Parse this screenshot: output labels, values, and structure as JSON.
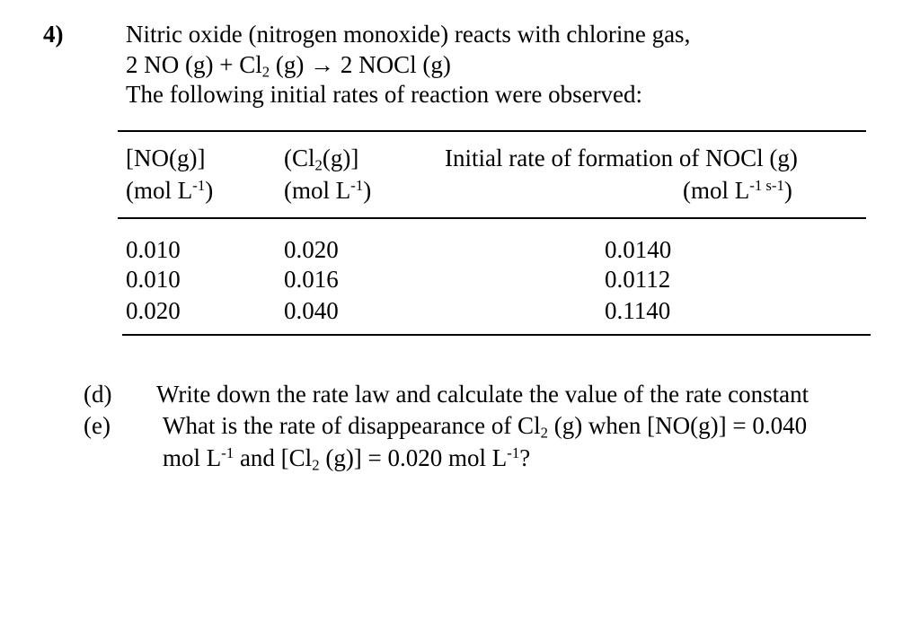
{
  "question": {
    "number": "4)",
    "intro": "Nitric oxide (nitrogen monoxide) reacts with chlorine gas,",
    "equation": {
      "lhs_prefix": "2 NO (g) + Cl",
      "lhs_sub": "2",
      "arrow_part": " (g) → 2 NOCl (g)"
    },
    "lead_in": "The following initial rates of reaction were observed:"
  },
  "table": {
    "headers": [
      {
        "line1_a": "[NO(g)]",
        "line1_sub": "",
        "line1_b": "",
        "line2_a": "(mol L",
        "line2_sup": "-1",
        "line2_b": ")"
      },
      {
        "line1_a": "(Cl",
        "line1_sub": "2",
        "line1_b": "(g)]",
        "line2_a": "(mol L",
        "line2_sup": "-1",
        "line2_b": ")"
      },
      {
        "line1_a": "Initial rate of formation of NOCl (g)",
        "line1_sub": "",
        "line1_b": "",
        "line2_a": "(mol L",
        "line2_sup": "-1 s-1",
        "line2_b": ")"
      }
    ],
    "rows": [
      [
        "0.010",
        "0.020",
        "0.0140"
      ],
      [
        "0.010",
        "0.016",
        "0.0112"
      ],
      [
        "0.020",
        "0.040",
        "0.1140"
      ]
    ]
  },
  "parts": [
    {
      "label": "(d)",
      "text": "Write down the rate law and calculate the value of the rate constant"
    },
    {
      "label": "(e)",
      "line1_a": "What is the rate of disappearance of Cl",
      "line1_sub": "2",
      "line1_b": " (g) when [NO(g)] = 0.040",
      "line2_a": "mol L",
      "line2_sup": "-1",
      "line2_b": " and [Cl",
      "line2_sub": "2",
      "line2_c": " (g)] = 0.020 mol L",
      "line2_sup2": "-1",
      "line2_d": "?"
    }
  ]
}
